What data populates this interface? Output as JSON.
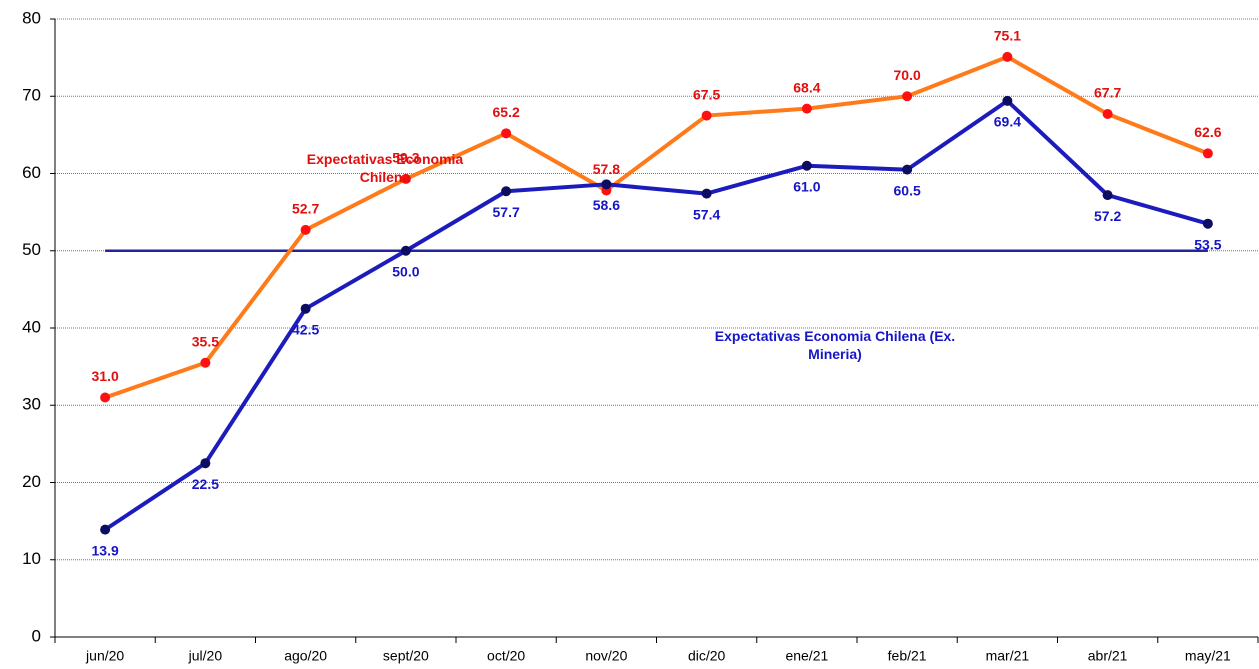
{
  "chart_data": {
    "type": "line",
    "categories": [
      "jun/20",
      "jul/20",
      "ago/20",
      "sept/20",
      "oct/20",
      "nov/20",
      "dic/20",
      "ene/21",
      "feb/21",
      "mar/21",
      "abr/21",
      "may/21"
    ],
    "series": [
      {
        "name": "Expectativas Economia Chilena",
        "color": "#ff7a1a",
        "marker_color": "#ff1010",
        "label_color": "#e01010",
        "values": [
          31.0,
          35.5,
          52.7,
          59.3,
          65.2,
          57.8,
          67.5,
          68.4,
          70.0,
          75.1,
          67.7,
          62.6
        ],
        "value_labels": [
          "31.0",
          "35.5",
          "52.7",
          "59.3",
          "65.2",
          "57.8",
          "67.5",
          "68.4",
          "70.0",
          "75.1",
          "67.7",
          "62.6"
        ]
      },
      {
        "name": "Expectativas Economia Chilena (Ex. Mineria)",
        "color": "#1c1cbc",
        "marker_color": "#0c0c60",
        "label_color": "#1616c8",
        "values": [
          13.9,
          22.5,
          42.5,
          50.0,
          57.7,
          58.6,
          57.4,
          61.0,
          60.5,
          69.4,
          57.2,
          53.5
        ],
        "value_labels": [
          "13.9",
          "22.5",
          "42.5",
          "50.0",
          "57.7",
          "58.6",
          "57.4",
          "61.0",
          "60.5",
          "69.4",
          "57.2",
          "53.5"
        ]
      }
    ],
    "reference_line": {
      "value": 50,
      "color": "#23239a"
    },
    "ylim": [
      0,
      80
    ],
    "yticks": [
      0,
      10,
      20,
      30,
      40,
      50,
      60,
      70,
      80
    ],
    "grid": true
  }
}
